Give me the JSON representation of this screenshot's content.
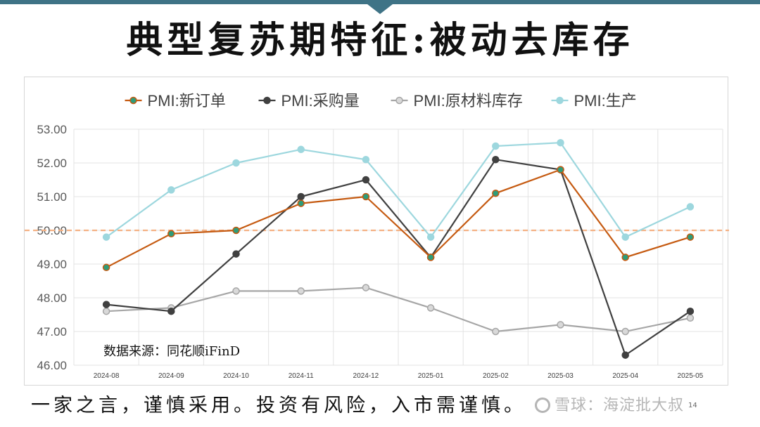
{
  "slide": {
    "title": "典型复苏期特征:被动去库存",
    "footer": "一家之言，谨慎采用。投资有风险，入市需谨慎。",
    "watermark": "雪球：海淀批大叔",
    "page_number": "14"
  },
  "chart_data": {
    "type": "line",
    "categories": [
      "2024-08",
      "2024-09",
      "2024-10",
      "2024-11",
      "2024-12",
      "2025-01",
      "2025-02",
      "2025-03",
      "2025-04",
      "2025-05"
    ],
    "series": [
      {
        "name": "PMI:新订单",
        "color": "#c55a11",
        "marker_fill": "#2e9c7a",
        "values": [
          48.9,
          49.9,
          50.0,
          50.8,
          51.0,
          49.2,
          51.1,
          51.8,
          49.2,
          49.8
        ]
      },
      {
        "name": "PMI:采购量",
        "color": "#404040",
        "marker_fill": "#404040",
        "values": [
          47.8,
          47.6,
          49.3,
          51.0,
          51.5,
          49.2,
          52.1,
          51.8,
          46.3,
          47.6
        ]
      },
      {
        "name": "PMI:原材料库存",
        "color": "#a6a6a6",
        "marker_fill": "#d9d9d9",
        "values": [
          47.6,
          47.7,
          48.2,
          48.2,
          48.3,
          47.7,
          47.0,
          47.2,
          47.0,
          47.4
        ]
      },
      {
        "name": "PMI:生产",
        "color": "#9dd7de",
        "marker_fill": "#9dd7de",
        "values": [
          49.8,
          51.2,
          52.0,
          52.4,
          52.1,
          49.8,
          52.5,
          52.6,
          49.8,
          50.7
        ]
      }
    ],
    "ylim": [
      46.0,
      53.0
    ],
    "yticks": [
      "46.00",
      "47.00",
      "48.00",
      "49.00",
      "50.00",
      "51.00",
      "52.00",
      "53.00"
    ],
    "reference_line": {
      "value": 50.0,
      "color": "#f4b183",
      "style": "dashed"
    },
    "grid": true,
    "legend": "top",
    "annotation": "数据来源：同花顺iFinD"
  }
}
